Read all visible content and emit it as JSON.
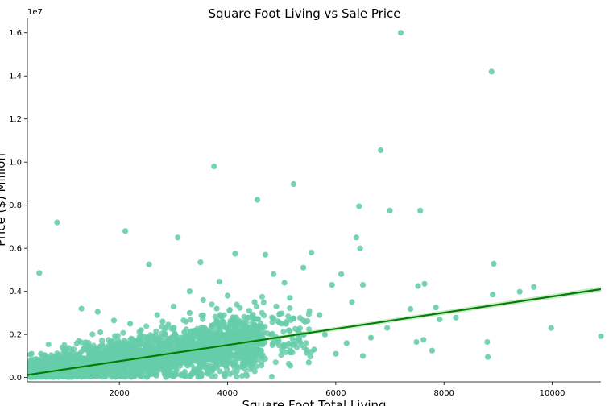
{
  "chart_data": {
    "type": "scatter",
    "title": "Square Foot Living vs Sale Price",
    "xlabel": "Square Foot Total Living",
    "ylabel": "Price ($) Million",
    "offset_text": "1e7",
    "xlim": [
      300,
      10900
    ],
    "ylim": [
      -200000,
      16700000
    ],
    "xticks": [
      2000,
      4000,
      6000,
      8000,
      10000
    ],
    "xtick_labels": [
      "2000",
      "4000",
      "6000",
      "8000",
      "10000"
    ],
    "yticks": [
      0,
      2000000,
      4000000,
      6000000,
      8000000,
      10000000,
      12000000,
      14000000,
      16000000
    ],
    "ytick_labels": [
      "0.0",
      "0.2",
      "0.4",
      "0.6",
      "0.8",
      "1.0",
      "1.2",
      "1.4",
      "1.6"
    ],
    "grid": false,
    "point_color": "#66cdaa",
    "line_color": "#008000",
    "band_color": "#b8dfb8",
    "regression": {
      "x": [
        300,
        10900
      ],
      "y": [
        120000,
        4100000
      ]
    },
    "points": [
      {
        "x": 7200,
        "y": 16000000
      },
      {
        "x": 8880,
        "y": 14200000
      },
      {
        "x": 6830,
        "y": 10550000
      },
      {
        "x": 3750,
        "y": 9800000
      },
      {
        "x": 5220,
        "y": 8980000
      },
      {
        "x": 4550,
        "y": 8250000
      },
      {
        "x": 6430,
        "y": 7950000
      },
      {
        "x": 7000,
        "y": 7750000
      },
      {
        "x": 7560,
        "y": 7750000
      },
      {
        "x": 850,
        "y": 7200000
      },
      {
        "x": 2110,
        "y": 6800000
      },
      {
        "x": 3080,
        "y": 6500000
      },
      {
        "x": 6380,
        "y": 6500000
      },
      {
        "x": 6450,
        "y": 6000000
      },
      {
        "x": 4140,
        "y": 5750000
      },
      {
        "x": 5550,
        "y": 5800000
      },
      {
        "x": 2550,
        "y": 5250000
      },
      {
        "x": 8920,
        "y": 5280000
      },
      {
        "x": 520,
        "y": 4850000
      },
      {
        "x": 7640,
        "y": 4350000
      },
      {
        "x": 9400,
        "y": 3980000
      },
      {
        "x": 9660,
        "y": 4200000
      },
      {
        "x": 8900,
        "y": 3850000
      },
      {
        "x": 7520,
        "y": 4250000
      },
      {
        "x": 6500,
        "y": 4300000
      },
      {
        "x": 9980,
        "y": 2300000
      },
      {
        "x": 10900,
        "y": 1920000
      },
      {
        "x": 8810,
        "y": 950000
      },
      {
        "x": 8800,
        "y": 1650000
      },
      {
        "x": 7780,
        "y": 1250000
      },
      {
        "x": 8220,
        "y": 2780000
      },
      {
        "x": 7920,
        "y": 2700000
      },
      {
        "x": 7490,
        "y": 1650000
      },
      {
        "x": 7620,
        "y": 1750000
      },
      {
        "x": 7380,
        "y": 3180000
      },
      {
        "x": 7850,
        "y": 3250000
      },
      {
        "x": 5930,
        "y": 4300000
      },
      {
        "x": 6100,
        "y": 4800000
      },
      {
        "x": 5700,
        "y": 2900000
      },
      {
        "x": 6650,
        "y": 1850000
      },
      {
        "x": 6950,
        "y": 2300000
      },
      {
        "x": 6200,
        "y": 1600000
      },
      {
        "x": 5400,
        "y": 5100000
      },
      {
        "x": 5050,
        "y": 4400000
      },
      {
        "x": 4700,
        "y": 5700000
      },
      {
        "x": 3500,
        "y": 5350000
      },
      {
        "x": 3850,
        "y": 4450000
      },
      {
        "x": 4900,
        "y": 3300000
      },
      {
        "x": 4400,
        "y": 3100000
      },
      {
        "x": 3300,
        "y": 4000000
      },
      {
        "x": 3000,
        "y": 3300000
      },
      {
        "x": 2700,
        "y": 2900000
      },
      {
        "x": 1300,
        "y": 3200000
      },
      {
        "x": 1600,
        "y": 3050000
      },
      {
        "x": 1900,
        "y": 2650000
      },
      {
        "x": 2200,
        "y": 2500000
      },
      {
        "x": 5300,
        "y": 2200000
      },
      {
        "x": 5800,
        "y": 2000000
      },
      {
        "x": 6300,
        "y": 3500000
      },
      {
        "x": 5600,
        "y": 1300000
      },
      {
        "x": 4300,
        "y": 1100000
      },
      {
        "x": 4100,
        "y": 2800000
      },
      {
        "x": 3700,
        "y": 2400000
      },
      {
        "x": 3200,
        "y": 2100000
      },
      {
        "x": 2900,
        "y": 1800000
      },
      {
        "x": 2500,
        "y": 1600000
      },
      {
        "x": 2300,
        "y": 1200000
      },
      {
        "x": 2000,
        "y": 1300000
      },
      {
        "x": 1800,
        "y": 900000
      },
      {
        "x": 1500,
        "y": 1000000
      },
      {
        "x": 1200,
        "y": 700000
      },
      {
        "x": 1000,
        "y": 600000
      },
      {
        "x": 800,
        "y": 500000
      },
      {
        "x": 600,
        "y": 400000
      },
      {
        "x": 400,
        "y": 300000
      },
      {
        "x": 700,
        "y": 900000
      },
      {
        "x": 1100,
        "y": 1100000
      },
      {
        "x": 1400,
        "y": 500000
      },
      {
        "x": 1700,
        "y": 600000
      },
      {
        "x": 2100,
        "y": 800000
      },
      {
        "x": 2600,
        "y": 900000
      },
      {
        "x": 3100,
        "y": 1000000
      },
      {
        "x": 3400,
        "y": 1400000
      },
      {
        "x": 3600,
        "y": 1200000
      },
      {
        "x": 3900,
        "y": 1700000
      },
      {
        "x": 4200,
        "y": 1500000
      },
      {
        "x": 4600,
        "y": 1600000
      },
      {
        "x": 4800,
        "y": 2000000
      },
      {
        "x": 5000,
        "y": 2500000
      },
      {
        "x": 5200,
        "y": 1800000
      },
      {
        "x": 2400,
        "y": 2200000
      },
      {
        "x": 2800,
        "y": 2600000
      },
      {
        "x": 3300,
        "y": 3000000
      },
      {
        "x": 3800,
        "y": 3200000
      },
      {
        "x": 4500,
        "y": 3500000
      },
      {
        "x": 950,
        "y": 1400000
      },
      {
        "x": 1250,
        "y": 1700000
      },
      {
        "x": 1650,
        "y": 2100000
      },
      {
        "x": 450,
        "y": 800000
      },
      {
        "x": 550,
        "y": 1100000
      },
      {
        "x": 3000,
        "y": 50000
      },
      {
        "x": 3950,
        "y": 50000
      },
      {
        "x": 1000,
        "y": 50000
      },
      {
        "x": 1500,
        "y": 100000
      },
      {
        "x": 2500,
        "y": 300000
      },
      {
        "x": 4400,
        "y": 800000
      },
      {
        "x": 5500,
        "y": 700000
      },
      {
        "x": 6000,
        "y": 1100000
      },
      {
        "x": 6500,
        "y": 1000000
      },
      {
        "x": 4000,
        "y": 3800000
      },
      {
        "x": 4850,
        "y": 4800000
      },
      {
        "x": 5150,
        "y": 3700000
      },
      {
        "x": 3550,
        "y": 3600000
      }
    ]
  }
}
